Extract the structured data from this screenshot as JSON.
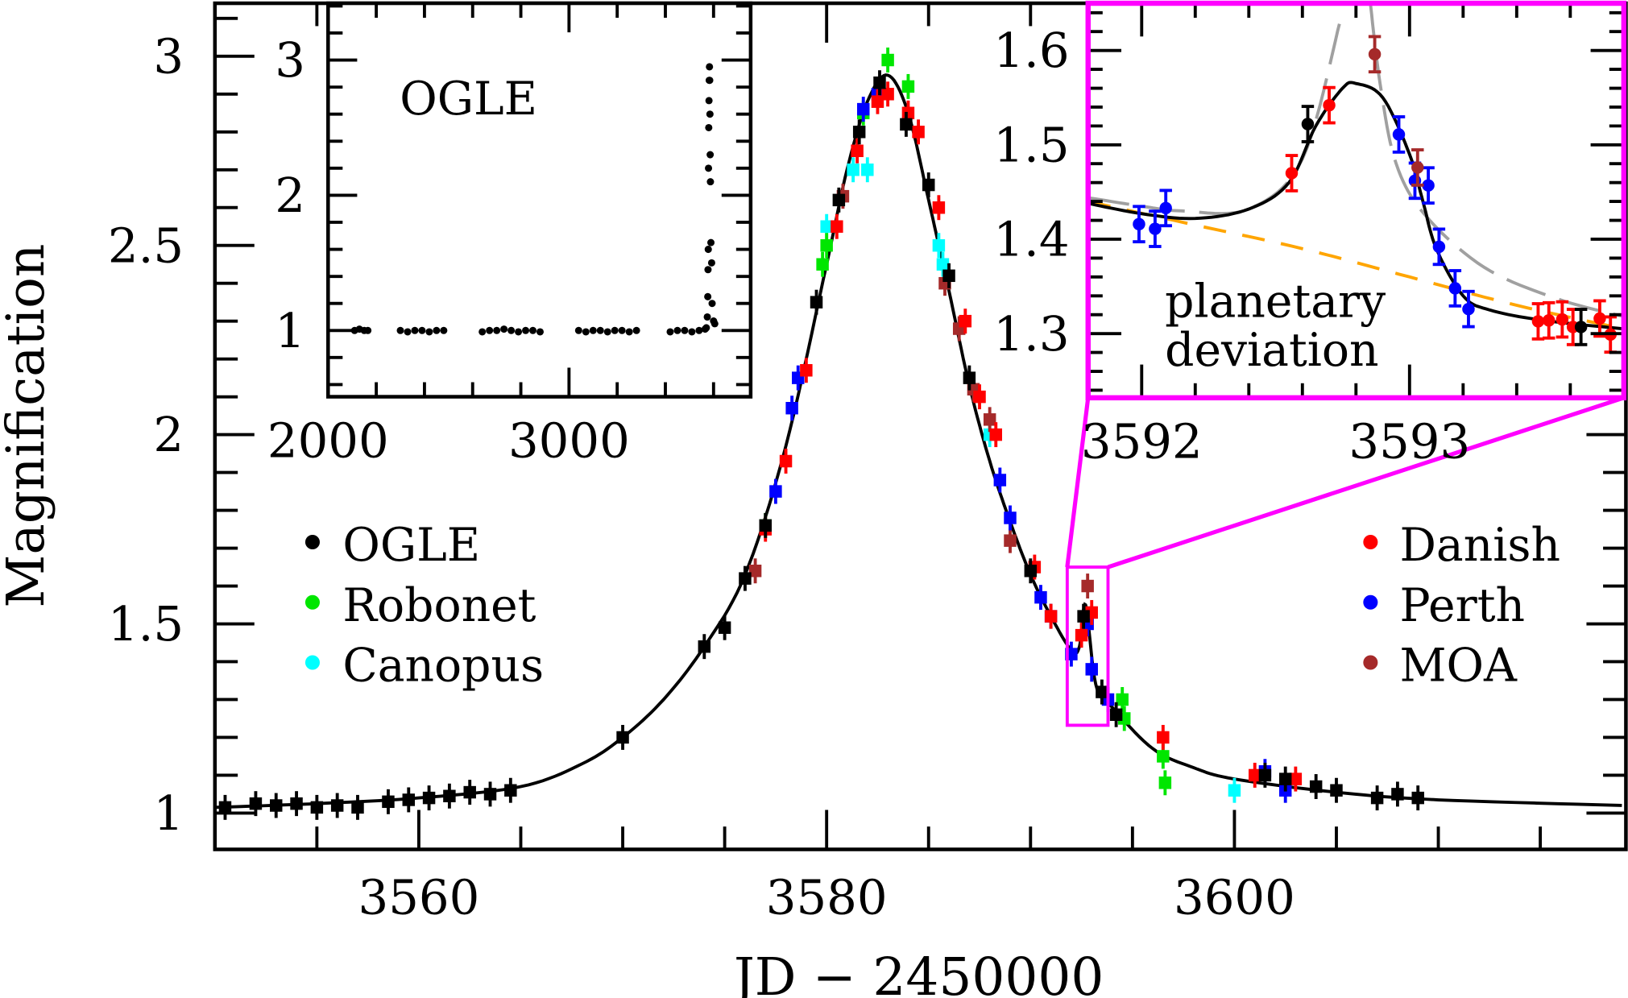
{
  "colors": {
    "OGLE": "#000000",
    "Robonet": "#00e600",
    "Canopus": "#00ffff",
    "Danish": "#ff0000",
    "Perth": "#0000ff",
    "MOA": "#a52a2a",
    "highlight": "#ff00ff",
    "model": "#000000",
    "model_no_planet": "#ffa500",
    "model_alt": "#a0a0a0"
  },
  "chart_data": [
    {
      "panel": "main",
      "type": "scatter",
      "xlabel": "JD − 2450000",
      "ylabel": "Magnification",
      "xlim": [
        3550,
        3619.2
      ],
      "ylim": [
        0.904,
        3.14
      ],
      "xticks": [
        3560,
        3580,
        3600
      ],
      "xtick_labels": [
        "3560",
        "3580",
        "3600"
      ],
      "yticks": [
        1,
        1.5,
        2,
        2.5,
        3
      ],
      "ytick_labels": [
        "1",
        "1.5",
        "2",
        "2.5",
        "3"
      ],
      "legend_left": [
        "OGLE",
        "Robonet",
        "Canopus"
      ],
      "legend_right": [
        "Danish",
        "Perth",
        "MOA"
      ],
      "highlight_box": {
        "x": [
          3591.8,
          3593.8
        ],
        "y": [
          1.232,
          1.65
        ]
      },
      "model": [
        [
          3550,
          1.015
        ],
        [
          3555,
          1.025
        ],
        [
          3560,
          1.04
        ],
        [
          3565,
          1.07
        ],
        [
          3568,
          1.13
        ],
        [
          3570,
          1.2
        ],
        [
          3572,
          1.3
        ],
        [
          3574,
          1.44
        ],
        [
          3576,
          1.63
        ],
        [
          3578,
          1.97
        ],
        [
          3580,
          2.45
        ],
        [
          3581,
          2.7
        ],
        [
          3582,
          2.88
        ],
        [
          3583,
          2.95
        ],
        [
          3584,
          2.85
        ],
        [
          3585,
          2.62
        ],
        [
          3586,
          2.38
        ],
        [
          3587,
          2.13
        ],
        [
          3588,
          1.93
        ],
        [
          3589,
          1.77
        ],
        [
          3590,
          1.63
        ],
        [
          3591,
          1.52
        ],
        [
          3592,
          1.43
        ],
        [
          3592.4,
          1.44
        ],
        [
          3592.7,
          1.55
        ],
        [
          3593.2,
          1.34
        ],
        [
          3594,
          1.28
        ],
        [
          3596,
          1.17
        ],
        [
          3598,
          1.12
        ],
        [
          3600,
          1.09
        ],
        [
          3605,
          1.055
        ],
        [
          3610,
          1.035
        ],
        [
          3619,
          1.02
        ]
      ],
      "series": [
        {
          "name": "OGLE",
          "values": [
            [
              3550.5,
              1.015
            ],
            [
              3552,
              1.025
            ],
            [
              3553,
              1.02
            ],
            [
              3554,
              1.025
            ],
            [
              3555,
              1.015
            ],
            [
              3556,
              1.02
            ],
            [
              3557,
              1.015
            ],
            [
              3558.5,
              1.03
            ],
            [
              3559.5,
              1.035
            ],
            [
              3560.5,
              1.04
            ],
            [
              3561.5,
              1.045
            ],
            [
              3562.5,
              1.055
            ],
            [
              3563.5,
              1.05
            ],
            [
              3564.5,
              1.06
            ],
            [
              3570,
              1.2
            ],
            [
              3574,
              1.44
            ],
            [
              3575,
              1.49
            ],
            [
              3576,
              1.62
            ],
            [
              3577,
              1.76
            ],
            [
              3579.5,
              2.35
            ],
            [
              3580.6,
              2.62
            ],
            [
              3581.6,
              2.8
            ],
            [
              3582.6,
              2.93
            ],
            [
              3583.9,
              2.82
            ],
            [
              3585,
              2.66
            ],
            [
              3586,
              2.42
            ],
            [
              3587,
              2.15
            ],
            [
              3590,
              1.64
            ],
            [
              3592.6,
              1.52
            ],
            [
              3593.5,
              1.32
            ],
            [
              3594.2,
              1.26
            ],
            [
              3601.5,
              1.1
            ],
            [
              3602.5,
              1.09
            ],
            [
              3604,
              1.07
            ],
            [
              3605,
              1.06
            ],
            [
              3607,
              1.04
            ],
            [
              3608,
              1.05
            ],
            [
              3609,
              1.04
            ]
          ]
        },
        {
          "name": "Robonet",
          "values": [
            [
              3577,
              1.76
            ],
            [
              3579.8,
              2.45
            ],
            [
              3580,
              2.5
            ],
            [
              3581.8,
              2.85
            ],
            [
              3583,
              2.99
            ],
            [
              3584,
              2.92
            ],
            [
              3594.5,
              1.3
            ],
            [
              3594.6,
              1.25
            ],
            [
              3596.5,
              1.15
            ],
            [
              3596.6,
              1.08
            ]
          ]
        },
        {
          "name": "Canopus",
          "values": [
            [
              3580,
              2.55
            ],
            [
              3581.3,
              2.7
            ],
            [
              3582,
              2.7
            ],
            [
              3585.5,
              2.5
            ],
            [
              3585.7,
              2.45
            ],
            [
              3588,
              2.0
            ],
            [
              3600,
              1.06
            ]
          ]
        },
        {
          "name": "Danish",
          "values": [
            [
              3577,
              1.75
            ],
            [
              3578,
              1.93
            ],
            [
              3579,
              2.17
            ],
            [
              3580.5,
              2.55
            ],
            [
              3581.5,
              2.75
            ],
            [
              3582.5,
              2.88
            ],
            [
              3583,
              2.9
            ],
            [
              3584,
              2.85
            ],
            [
              3584.5,
              2.8
            ],
            [
              3585.5,
              2.6
            ],
            [
              3586.8,
              2.3
            ],
            [
              3587.5,
              2.1
            ],
            [
              3588.3,
              2.0
            ],
            [
              3590.2,
              1.65
            ],
            [
              3591,
              1.52
            ],
            [
              3592.5,
              1.47
            ],
            [
              3593,
              1.53
            ],
            [
              3596.5,
              1.2
            ],
            [
              3601,
              1.1
            ],
            [
              3603,
              1.09
            ]
          ]
        },
        {
          "name": "Perth",
          "values": [
            [
              3577.5,
              1.85
            ],
            [
              3578.3,
              2.07
            ],
            [
              3578.6,
              2.15
            ],
            [
              3581.8,
              2.86
            ],
            [
              3582.5,
              2.9
            ],
            [
              3588.5,
              1.88
            ],
            [
              3589,
              1.78
            ],
            [
              3590.5,
              1.57
            ],
            [
              3591,
              1.52
            ],
            [
              3592,
              1.42
            ],
            [
              3592.8,
              1.5
            ],
            [
              3593,
              1.38
            ],
            [
              3593.8,
              1.3
            ],
            [
              3601.5,
              1.11
            ],
            [
              3602.5,
              1.06
            ]
          ]
        },
        {
          "name": "MOA",
          "values": [
            [
              3576.5,
              1.64
            ],
            [
              3580.8,
              2.63
            ],
            [
              3585.8,
              2.4
            ],
            [
              3586.5,
              2.28
            ],
            [
              3587.2,
              2.12
            ],
            [
              3588,
              2.04
            ],
            [
              3589,
              1.72
            ],
            [
              3592.8,
              1.6
            ]
          ]
        }
      ]
    },
    {
      "panel": "inset-ogle",
      "type": "scatter",
      "label": "OGLE",
      "xlim": [
        2000,
        3754
      ],
      "ylim": [
        0.51,
        3.42
      ],
      "xticks": [
        2000,
        3000
      ],
      "xtick_labels": [
        "2000",
        "3000"
      ],
      "yticks": [
        1,
        2,
        3
      ],
      "ytick_labels": [
        "1",
        "2",
        "3"
      ],
      "values": [
        [
          2110,
          1.0
        ],
        [
          2130,
          1.01
        ],
        [
          2150,
          1.0
        ],
        [
          2165,
          1.0
        ],
        [
          2300,
          1.0
        ],
        [
          2330,
          0.99
        ],
        [
          2360,
          1.0
        ],
        [
          2390,
          1.0
        ],
        [
          2420,
          0.99
        ],
        [
          2450,
          1.0
        ],
        [
          2480,
          1.0
        ],
        [
          2640,
          0.99
        ],
        [
          2670,
          1.0
        ],
        [
          2700,
          1.0
        ],
        [
          2730,
          1.01
        ],
        [
          2760,
          1.0
        ],
        [
          2790,
          0.99
        ],
        [
          2820,
          1.0
        ],
        [
          2850,
          1.0
        ],
        [
          2880,
          0.99
        ],
        [
          3040,
          1.0
        ],
        [
          3070,
          0.99
        ],
        [
          3100,
          1.0
        ],
        [
          3130,
          1.0
        ],
        [
          3160,
          0.99
        ],
        [
          3190,
          1.0
        ],
        [
          3220,
          1.0
        ],
        [
          3250,
          0.99
        ],
        [
          3280,
          1.0
        ],
        [
          3420,
          0.99
        ],
        [
          3450,
          1.0
        ],
        [
          3480,
          1.0
        ],
        [
          3510,
          0.99
        ],
        [
          3540,
          1.0
        ],
        [
          3565,
          1.01
        ],
        [
          3570,
          1.02
        ],
        [
          3574,
          1.1
        ],
        [
          3576,
          1.25
        ],
        [
          3577,
          1.45
        ],
        [
          3578,
          1.6
        ],
        [
          3579,
          2.2
        ],
        [
          3580,
          2.5
        ],
        [
          3581,
          2.7
        ],
        [
          3582,
          2.85
        ],
        [
          3583,
          2.95
        ],
        [
          3584,
          2.85
        ],
        [
          3585,
          2.6
        ],
        [
          3586,
          2.3
        ],
        [
          3587,
          2.1
        ],
        [
          3589,
          1.65
        ],
        [
          3592,
          1.5
        ],
        [
          3594,
          1.2
        ],
        [
          3600,
          1.07
        ],
        [
          3605,
          1.05
        ]
      ]
    },
    {
      "panel": "inset-deviation",
      "type": "scatter",
      "label": "planetary deviation",
      "xlim": [
        3591.8,
        3593.8
      ],
      "ylim": [
        1.232,
        1.65
      ],
      "xticks": [
        3592,
        3593
      ],
      "xtick_labels": [
        "3592",
        "3593"
      ],
      "yticks": [
        1.3,
        1.4,
        1.5,
        1.6
      ],
      "ytick_labels": [
        "1.3",
        "1.4",
        "1.5",
        "1.6"
      ],
      "model": [
        [
          3591.8,
          1.438
        ],
        [
          3592.0,
          1.427
        ],
        [
          3592.2,
          1.422
        ],
        [
          3592.4,
          1.432
        ],
        [
          3592.55,
          1.46
        ],
        [
          3592.65,
          1.52
        ],
        [
          3592.75,
          1.56
        ],
        [
          3592.8,
          1.565
        ],
        [
          3592.9,
          1.55
        ],
        [
          3593.0,
          1.49
        ],
        [
          3593.05,
          1.44
        ],
        [
          3593.1,
          1.39
        ],
        [
          3593.2,
          1.34
        ],
        [
          3593.3,
          1.325
        ],
        [
          3593.5,
          1.314
        ],
        [
          3593.8,
          1.305
        ]
      ],
      "model_no_planet": [
        [
          3591.8,
          1.44
        ],
        [
          3592.2,
          1.415
        ],
        [
          3592.6,
          1.39
        ],
        [
          3593.0,
          1.36
        ],
        [
          3593.4,
          1.33
        ],
        [
          3593.8,
          1.305
        ]
      ],
      "model_alt": [
        [
          3591.8,
          1.444
        ],
        [
          3592.0,
          1.435
        ],
        [
          3592.15,
          1.43
        ],
        [
          3592.4,
          1.432
        ],
        [
          3592.6,
          1.485
        ],
        [
          3592.74,
          1.63
        ]
      ],
      "model_alt_right": [
        [
          3592.85,
          1.66
        ],
        [
          3592.89,
          1.565
        ],
        [
          3592.95,
          1.48
        ],
        [
          3593.06,
          1.425
        ],
        [
          3593.28,
          1.37
        ],
        [
          3593.55,
          1.337
        ],
        [
          3593.8,
          1.318
        ]
      ],
      "series": [
        {
          "name": "Perth",
          "values": [
            [
              3591.99,
              1.416
            ],
            [
              3592.05,
              1.411
            ],
            [
              3592.09,
              1.433
            ],
            [
              3592.96,
              1.511
            ],
            [
              3593.02,
              1.462
            ],
            [
              3593.07,
              1.457
            ],
            [
              3593.11,
              1.392
            ],
            [
              3593.17,
              1.348
            ],
            [
              3593.22,
              1.326
            ]
          ]
        },
        {
          "name": "Danish",
          "values": [
            [
              3592.56,
              1.47
            ],
            [
              3592.7,
              1.542
            ],
            [
              3593.48,
              1.313
            ],
            [
              3593.52,
              1.314
            ],
            [
              3593.57,
              1.315
            ],
            [
              3593.61,
              1.307
            ],
            [
              3593.71,
              1.316
            ],
            [
              3593.75,
              1.299
            ]
          ]
        },
        {
          "name": "OGLE",
          "values": [
            [
              3592.62,
              1.522
            ],
            [
              3593.64,
              1.307
            ]
          ]
        },
        {
          "name": "MOA",
          "values": [
            [
              3592.87,
              1.596
            ],
            [
              3593.03,
              1.476
            ]
          ]
        }
      ]
    }
  ]
}
